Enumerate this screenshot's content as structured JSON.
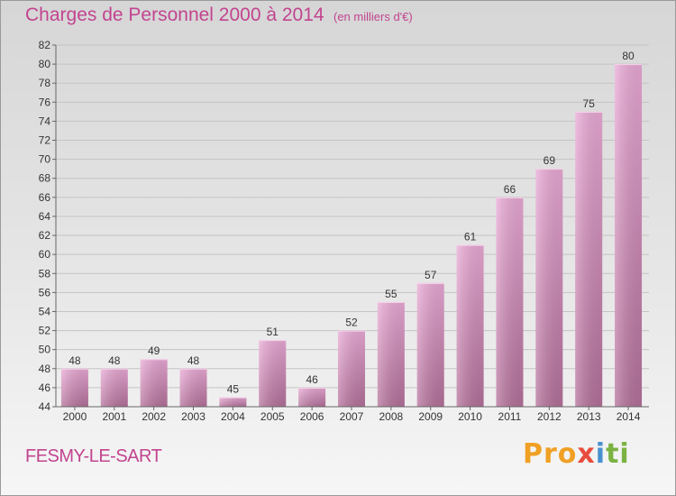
{
  "title": "Charges de Personnel 2000 à 2014",
  "unit_note": "(en milliers d'€)",
  "commune": "FESMY-LE-SART",
  "logo": {
    "p1": "Pro",
    "p2": "x",
    "p3": "i",
    "p4": "ti"
  },
  "colors": {
    "accent": "#c2448f",
    "bar_top": "#e9a8d3",
    "bar_bottom": "#b76e9b"
  },
  "chart_data": {
    "type": "bar",
    "title": "Charges de Personnel 2000 à 2014",
    "categories": [
      "2000",
      "2001",
      "2002",
      "2003",
      "2004",
      "2005",
      "2006",
      "2007",
      "2008",
      "2009",
      "2010",
      "2011",
      "2012",
      "2013",
      "2014"
    ],
    "values": [
      48,
      48,
      49,
      48,
      45,
      51,
      46,
      52,
      55,
      57,
      61,
      66,
      69,
      75,
      80
    ],
    "ylim": [
      44,
      82
    ],
    "yticks": [
      44,
      46,
      48,
      50,
      52,
      54,
      56,
      58,
      60,
      62,
      64,
      66,
      68,
      70,
      72,
      74,
      76,
      78,
      80,
      82
    ],
    "grid": true,
    "xlabel": "",
    "ylabel": ""
  }
}
